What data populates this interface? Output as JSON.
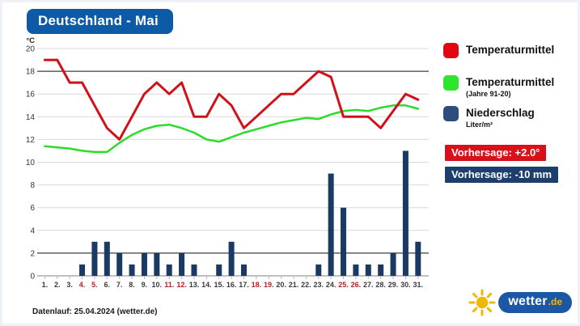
{
  "title": "Deutschland - Mai",
  "colors": {
    "title_bg": "#0d5aa7",
    "temp_line": "#d2101a",
    "climate_line": "#2bdc2b",
    "precip_bar": "#1b3a63",
    "legend_red": "#e30613",
    "legend_green": "#2ee52e",
    "legend_navy": "#2d4d7c",
    "badge_temp_bg": "#d8101b",
    "badge_precip_bg": "#1d3f6e",
    "weekend_label": "#b22222",
    "weekday_label": "#3a3a3a",
    "logo_blue": "#1b57a5",
    "logo_yellow": "#f2b705"
  },
  "legend": [
    {
      "label": "Temperaturmittel",
      "sublabel": "",
      "color": "#e30613"
    },
    {
      "label": "Temperaturmittel",
      "sublabel": "(Jahre 91-20)",
      "color": "#2ee52e"
    },
    {
      "label": "Niederschlag",
      "sublabel": "Liter/m²",
      "color": "#2d4d7c"
    }
  ],
  "badges": [
    {
      "text": "Vorhersage: +2.0°",
      "bg": "#d8101b"
    },
    {
      "text": "Vorhersage: -10 mm",
      "bg": "#1d3f6e"
    }
  ],
  "footer": "Datenlauf: 25.04.2024 (wetter.de)",
  "logo": {
    "text": "wetter",
    "tld": ".de"
  },
  "chart_data": {
    "type": "line+bar",
    "title": "Deutschland - Mai",
    "ylabel": "°C",
    "ylim": [
      0,
      20
    ],
    "ytick_step": 2,
    "dark_gridlines": [
      2,
      18
    ],
    "grid": true,
    "legend_position": "right",
    "x": [
      "1.",
      "2.",
      "3.",
      "4.",
      "5.",
      "6.",
      "7.",
      "8.",
      "9.",
      "10.",
      "11.",
      "12.",
      "13.",
      "14.",
      "15.",
      "16.",
      "17.",
      "18.",
      "19.",
      "20.",
      "21.",
      "22.",
      "23.",
      "24.",
      "25.",
      "26.",
      "27.",
      "28.",
      "29.",
      "30.",
      "31."
    ],
    "weekend_days": [
      4,
      5,
      11,
      12,
      18,
      19,
      25,
      26
    ],
    "series": [
      {
        "name": "Temperaturmittel",
        "type": "line",
        "color": "#d2101a",
        "values": [
          19,
          19,
          17,
          17,
          15,
          13,
          12,
          14,
          16,
          17,
          16,
          17,
          14,
          14,
          16,
          15,
          13,
          14,
          15,
          16,
          16,
          17,
          18,
          17.5,
          14,
          14,
          14,
          13,
          14.5,
          16,
          15.5
        ]
      },
      {
        "name": "Temperaturmittel (Jahre 91-20)",
        "type": "line",
        "color": "#2bdc2b",
        "values": [
          11.4,
          11.3,
          11.2,
          11.0,
          10.9,
          10.9,
          11.7,
          12.4,
          12.9,
          13.2,
          13.3,
          13.0,
          12.6,
          12.0,
          11.8,
          12.2,
          12.6,
          12.9,
          13.2,
          13.5,
          13.7,
          13.9,
          13.8,
          14.2,
          14.5,
          14.6,
          14.5,
          14.8,
          15.0,
          15.0,
          14.7
        ]
      },
      {
        "name": "Niederschlag (Liter/m²)",
        "type": "bar",
        "color": "#1b3a63",
        "values": [
          0,
          0,
          0,
          1,
          3,
          3,
          2,
          1,
          2,
          2,
          1,
          2,
          1,
          0,
          1,
          3,
          1,
          0,
          0,
          0,
          0,
          0,
          1,
          9,
          6,
          1,
          1,
          1,
          2,
          11,
          3
        ]
      }
    ]
  }
}
